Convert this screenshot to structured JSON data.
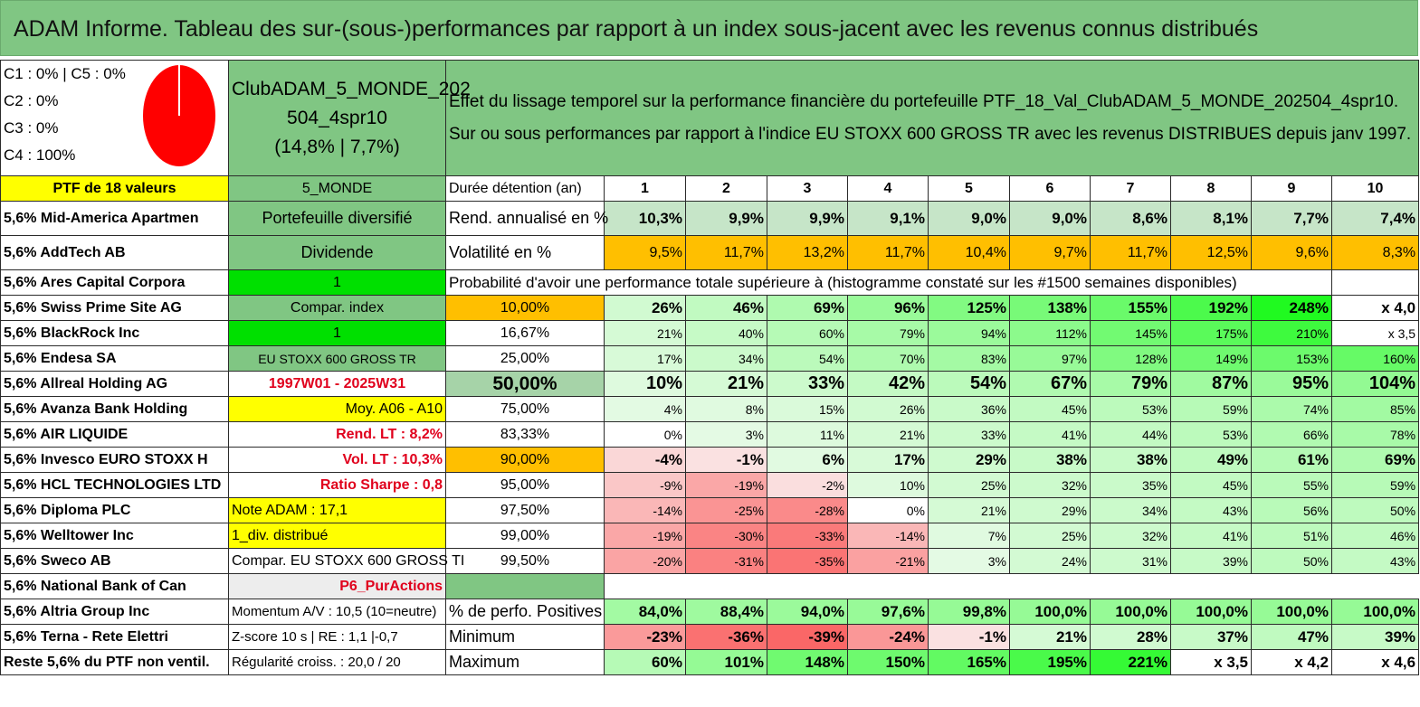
{
  "title": "ADAM Informe. Tableau des sur-(sous-)performances par rapport à un index sous-jacent avec les revenus connus distribués",
  "legend": [
    "C1 : 0% | C5 : 0%",
    "C2 : 0%",
    "C3 : 0%",
    "C4 : 100%"
  ],
  "pie": {
    "slices": [
      {
        "label": "C4",
        "value": 100,
        "color": "#ff0000"
      }
    ]
  },
  "fund": {
    "name_line1": "ClubADAM_5_MONDE_202",
    "name_line2": "504_4spr10",
    "name_line3": "(14,8% | 7,7%)"
  },
  "description": "Effet du lissage temporel sur la performance financière du portefeuille PTF_18_Val_ClubADAM_5_MONDE_202504_4spr10. Sur ou sous performances par rapport à l'indice EU STOXX 600 GROSS TR avec les revenus DISTRIBUES depuis janv 1997.",
  "ptf_label": "PTF de 18 valeurs",
  "ptf_code": "5_MONDE",
  "holdings": [
    "5,6% Mid-America Apartmen",
    "5,6% AddTech AB",
    "5,6% Ares Capital Corpora",
    "5,6% Swiss Prime Site AG",
    "5,6% BlackRock Inc",
    "5,6% Endesa SA",
    "5,6% Allreal Holding AG",
    "5,6% Avanza Bank Holding",
    "5,6% AIR LIQUIDE",
    "5,6% Invesco EURO STOXX H",
    "5,6% HCL TECHNOLOGIES LTD",
    "5,6% Diploma PLC",
    "5,6% Welltower Inc",
    "5,6% Sweco AB",
    "5,6% National Bank of Can",
    "5,6% Altria Group Inc",
    "5,6% Terna - Rete Elettri",
    "Reste 5,6% du PTF non ventil."
  ],
  "col2": [
    "Portefeuille diversifié",
    "Dividende",
    "1",
    "Compar. index",
    "1",
    "EU STOXX 600 GROSS TR",
    "1997W01 - 2025W31",
    "Moy. A06 - A10",
    "Rend. LT : 8,2%",
    "Vol. LT : 10,3%",
    "Ratio Sharpe : 0,8",
    "Note ADAM : 17,1",
    "1_div. distribué",
    "Compar. EU STOXX 600 GROSS TI",
    "P6_PurActions",
    "Momentum A/V : 10,5 (10=neutre)",
    "Z-score 10 s | RE : 1,1 |-0,7",
    "Régularité croiss. : 20,0 / 20"
  ],
  "duration_label": "Durée détention (an)",
  "years": [
    "1",
    "2",
    "3",
    "4",
    "5",
    "6",
    "7",
    "8",
    "9",
    "10"
  ],
  "rend_label": "Rend. annualisé en %",
  "rend": [
    "10,3%",
    "9,9%",
    "9,9%",
    "9,1%",
    "9,0%",
    "9,0%",
    "8,6%",
    "8,1%",
    "7,7%",
    "7,4%"
  ],
  "vol_label": "Volatilité en %",
  "vol": [
    "9,5%",
    "11,7%",
    "13,2%",
    "11,7%",
    "10,4%",
    "9,7%",
    "11,7%",
    "12,5%",
    "9,6%",
    "8,3%"
  ],
  "prob_title": "Probabilité d'avoir une performance totale supérieure à (histogramme constaté sur les #1500 semaines disponibles)",
  "prob_rows": [
    {
      "p": "10,00%",
      "v": [
        "26%",
        "46%",
        "69%",
        "96%",
        "125%",
        "138%",
        "155%",
        "192%",
        "248%",
        "x 4,0"
      ]
    },
    {
      "p": "16,67%",
      "v": [
        "21%",
        "40%",
        "60%",
        "79%",
        "94%",
        "112%",
        "145%",
        "175%",
        "210%",
        "x 3,5"
      ]
    },
    {
      "p": "25,00%",
      "v": [
        "17%",
        "34%",
        "54%",
        "70%",
        "83%",
        "97%",
        "128%",
        "149%",
        "153%",
        "160%"
      ]
    },
    {
      "p": "50,00%",
      "v": [
        "10%",
        "21%",
        "33%",
        "42%",
        "54%",
        "67%",
        "79%",
        "87%",
        "95%",
        "104%"
      ]
    },
    {
      "p": "75,00%",
      "v": [
        "4%",
        "8%",
        "15%",
        "26%",
        "36%",
        "45%",
        "53%",
        "59%",
        "74%",
        "85%"
      ]
    },
    {
      "p": "83,33%",
      "v": [
        "0%",
        "3%",
        "11%",
        "21%",
        "33%",
        "41%",
        "44%",
        "53%",
        "66%",
        "78%"
      ]
    },
    {
      "p": "90,00%",
      "v": [
        "-4%",
        "-1%",
        "6%",
        "17%",
        "29%",
        "38%",
        "38%",
        "49%",
        "61%",
        "69%"
      ]
    },
    {
      "p": "95,00%",
      "v": [
        "-9%",
        "-19%",
        "-2%",
        "10%",
        "25%",
        "32%",
        "35%",
        "45%",
        "55%",
        "59%"
      ]
    },
    {
      "p": "97,50%",
      "v": [
        "-14%",
        "-25%",
        "-28%",
        "0%",
        "21%",
        "29%",
        "34%",
        "43%",
        "56%",
        "50%"
      ]
    },
    {
      "p": "99,00%",
      "v": [
        "-19%",
        "-30%",
        "-33%",
        "-14%",
        "7%",
        "25%",
        "32%",
        "41%",
        "51%",
        "46%"
      ]
    },
    {
      "p": "99,50%",
      "v": [
        "-20%",
        "-31%",
        "-35%",
        "-21%",
        "3%",
        "24%",
        "31%",
        "39%",
        "50%",
        "43%"
      ]
    }
  ],
  "pos_label": "% de perfo. Positives",
  "pos": [
    "84,0%",
    "88,4%",
    "94,0%",
    "97,6%",
    "99,8%",
    "100,0%",
    "100,0%",
    "100,0%",
    "100,0%",
    "100,0%"
  ],
  "min_label": "Minimum",
  "min": [
    "-23%",
    "-36%",
    "-39%",
    "-24%",
    "-1%",
    "21%",
    "28%",
    "37%",
    "47%",
    "39%"
  ],
  "max_label": "Maximum",
  "max": [
    "60%",
    "101%",
    "148%",
    "150%",
    "165%",
    "195%",
    "221%",
    "x 3,5",
    "x 4,2",
    "x 4,6"
  ]
}
